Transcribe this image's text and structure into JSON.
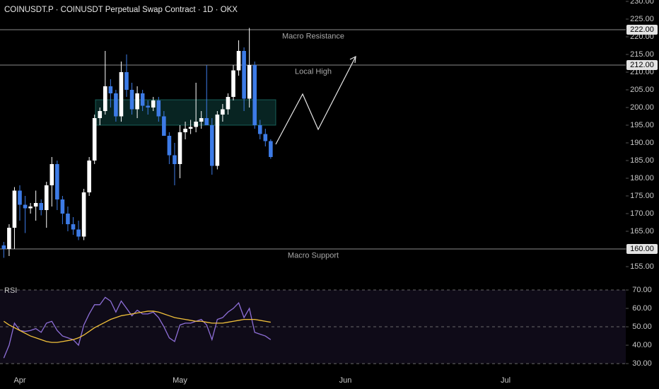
{
  "chart_data": [
    {
      "type": "candlestick",
      "title": "COINUSDT.P · COINUSDT Perpetual Swap Contract · 1D · OKX",
      "categories": [
        null,
        null,
        null,
        "Apr",
        null,
        null,
        null,
        null,
        null,
        null,
        null,
        null,
        null,
        null,
        null,
        null,
        null,
        null,
        null,
        null,
        null,
        null,
        null,
        null,
        null,
        null,
        null,
        null,
        null,
        null,
        null,
        null,
        null,
        "May",
        null,
        null,
        null,
        null,
        null,
        null,
        null,
        null,
        null,
        null,
        null,
        null,
        null,
        null,
        null,
        null,
        null,
        null,
        null,
        null,
        null,
        null,
        null,
        null,
        null,
        null,
        null,
        null,
        null,
        null,
        "Jun",
        null,
        null,
        null,
        null,
        null,
        null,
        null,
        null,
        null,
        null,
        null,
        null,
        null,
        null,
        null,
        null,
        null,
        null,
        null,
        null,
        null,
        null,
        null,
        null,
        null,
        null,
        null,
        null,
        null,
        "Jul"
      ],
      "open": [
        161,
        160,
        166,
        176.5,
        172.5,
        171.5,
        172,
        173,
        171,
        178,
        184,
        174,
        170,
        167,
        165.5,
        163.5,
        176,
        185,
        197,
        199,
        206,
        204,
        197.5,
        210,
        205,
        199.5,
        204,
        200.5,
        200,
        202,
        197.5,
        192,
        186.5,
        184,
        193,
        194,
        194.5,
        196,
        197,
        195,
        183.5,
        198,
        199.5,
        203,
        210.5,
        216,
        202.5,
        212,
        195,
        192.5,
        190.5,
        null,
        null,
        null,
        null,
        null,
        null,
        null,
        null,
        null,
        null,
        null,
        null,
        null,
        null,
        null,
        null,
        null,
        null,
        null,
        null,
        null,
        null,
        null,
        null,
        null,
        null,
        null,
        null,
        null,
        null,
        null,
        null,
        null,
        null,
        null,
        null,
        null,
        null,
        null,
        null,
        null,
        null,
        null,
        null
      ],
      "high": [
        162,
        167,
        177.5,
        178,
        175,
        173,
        176.5,
        174,
        179,
        186,
        185,
        175,
        172,
        169,
        168,
        177,
        186,
        198,
        200,
        216,
        208,
        205,
        213,
        215,
        207,
        206,
        205,
        202,
        203,
        203,
        199,
        193,
        190,
        195,
        196,
        196.5,
        207,
        199,
        212,
        197,
        199,
        201,
        204,
        212,
        219,
        217,
        222.5,
        213,
        196.5,
        194,
        191,
        null,
        null,
        null,
        null,
        null,
        null,
        null,
        null,
        null,
        null,
        null,
        null,
        null,
        null,
        null,
        null,
        null,
        null,
        null,
        null,
        null,
        null,
        null,
        null,
        null,
        null,
        null,
        null,
        null,
        null,
        null,
        null,
        null,
        null,
        null,
        null,
        null,
        null,
        null,
        null,
        null,
        null,
        null,
        null
      ],
      "low": [
        157.5,
        158,
        160,
        168,
        164.5,
        170,
        168,
        169.5,
        166,
        172,
        171,
        167,
        165,
        164,
        162.5,
        162.5,
        175,
        184,
        195,
        198,
        200,
        196,
        196,
        203,
        198,
        197,
        199,
        198,
        199,
        196,
        192,
        184,
        178,
        180,
        191,
        192.5,
        193,
        194,
        195,
        181,
        182.5,
        196,
        198,
        202,
        209,
        199,
        200,
        194,
        191,
        189,
        185.5,
        null,
        null,
        null,
        null,
        null,
        null,
        null,
        null,
        null,
        null,
        null,
        null,
        null,
        null,
        null,
        null,
        null,
        null,
        null,
        null,
        null,
        null,
        null,
        null,
        null,
        null,
        null,
        null,
        null,
        null,
        null,
        null,
        null,
        null,
        null,
        null,
        null,
        null,
        null,
        null,
        null,
        null,
        null,
        null
      ],
      "close": [
        160,
        166,
        176.5,
        172.5,
        171.5,
        172,
        173,
        171,
        178,
        184,
        174,
        170,
        167,
        165.5,
        163.5,
        176,
        185,
        197,
        199,
        206,
        204,
        197.5,
        210,
        205,
        199.5,
        204,
        200.5,
        200,
        202,
        197.5,
        192,
        186.5,
        184,
        193,
        194,
        194.5,
        196,
        197,
        195,
        183.5,
        198,
        199.5,
        203,
        210.5,
        216,
        202.5,
        212,
        195,
        192.5,
        190.5,
        186,
        null,
        null,
        null,
        null,
        null,
        null,
        null,
        null,
        null,
        null,
        null,
        null,
        null,
        null,
        null,
        null,
        null,
        null,
        null,
        null,
        null,
        null,
        null,
        null,
        null,
        null,
        null,
        null,
        null,
        null,
        null,
        null,
        null,
        null,
        null,
        null,
        null,
        null,
        null,
        null,
        null,
        null,
        null,
        null
      ],
      "up_color": "#ffffff",
      "down_color": "#3d7be6",
      "ylim": [
        150.4,
        230.4
      ],
      "yticks": [
        {
          "value": 230,
          "label": "230.00"
        },
        {
          "value": 225,
          "label": "225.00"
        },
        {
          "value": 220,
          "label": "220.00"
        },
        {
          "value": 215,
          "label": "215.00"
        },
        {
          "value": 210,
          "label": "210.00"
        },
        {
          "value": 205,
          "label": "205.00"
        },
        {
          "value": 200,
          "label": "200.00"
        },
        {
          "value": 195,
          "label": "195.00"
        },
        {
          "value": 190,
          "label": "190.00"
        },
        {
          "value": 185,
          "label": "185.00"
        },
        {
          "value": 180,
          "label": "180.00"
        },
        {
          "value": 175,
          "label": "175.00"
        },
        {
          "value": 170,
          "label": "170.00"
        },
        {
          "value": 165,
          "label": "165.00"
        },
        {
          "value": 160,
          "label": "160.00"
        },
        {
          "value": 155,
          "label": "155.00"
        }
      ],
      "levels": [
        {
          "value": 222,
          "label": "222.00",
          "text": "Macro Resistance"
        },
        {
          "value": 212,
          "label": "212.00",
          "text": "Local High"
        },
        {
          "value": 160,
          "label": "160.00",
          "text": "Macro Support"
        }
      ],
      "zone": {
        "low": 195,
        "high": 202.2,
        "color": "#26a69a"
      },
      "grid": false
    },
    {
      "type": "line",
      "title": "RSI",
      "series": [
        {
          "color": "#8e6fd8",
          "values": [
            33,
            40,
            52,
            48,
            47.5,
            48,
            49,
            47,
            52,
            53,
            48,
            45,
            44,
            43,
            40,
            51,
            57,
            62,
            62,
            66,
            64,
            58,
            64,
            60,
            56,
            59,
            57,
            57,
            58,
            55,
            50,
            44,
            42,
            51,
            52,
            52,
            53,
            54,
            51,
            43,
            54,
            55,
            58,
            60,
            63,
            55,
            60,
            47,
            46,
            45,
            43,
            null,
            null,
            null,
            null,
            null,
            null,
            null,
            null,
            null,
            null,
            null,
            null,
            null,
            null,
            null,
            null,
            null,
            null,
            null,
            null,
            null,
            null,
            null,
            null,
            null,
            null,
            null,
            null,
            null,
            null,
            null,
            null,
            null,
            null,
            null,
            null,
            null,
            null,
            null,
            null,
            null,
            null,
            null,
            null
          ]
        },
        {
          "color": "#f2c13a",
          "values": [
            53,
            51,
            49.5,
            48,
            46.5,
            45,
            44,
            43,
            42,
            41.5,
            41.5,
            42,
            42.5,
            43,
            44,
            45.5,
            47.5,
            49.5,
            51,
            52.5,
            54,
            55,
            56,
            56.5,
            57,
            57.5,
            58,
            58.5,
            58.5,
            58,
            57,
            56,
            55,
            54.5,
            54,
            53.5,
            53,
            53,
            52.5,
            52,
            52,
            52,
            52.5,
            53,
            53.5,
            54,
            54,
            54,
            53.5,
            53,
            52.5,
            null,
            null,
            null,
            null,
            null,
            null,
            null,
            null,
            null,
            null,
            null,
            null,
            null,
            null,
            null,
            null,
            null,
            null,
            null,
            null,
            null,
            null,
            null,
            null,
            null,
            null,
            null,
            null,
            null,
            null,
            null,
            null,
            null,
            null,
            null,
            null,
            null,
            null,
            null,
            null,
            null,
            null,
            null,
            null
          ]
        }
      ],
      "ylim": [
        25.8,
        72.7
      ],
      "yticks": [
        {
          "value": 70,
          "label": "70.00"
        },
        {
          "value": 60,
          "label": "60.00"
        },
        {
          "value": 50,
          "label": "50.00"
        },
        {
          "value": 40,
          "label": "40.00"
        },
        {
          "value": 30,
          "label": "30.00"
        }
      ],
      "hlines": [
        70,
        50,
        30
      ]
    }
  ]
}
